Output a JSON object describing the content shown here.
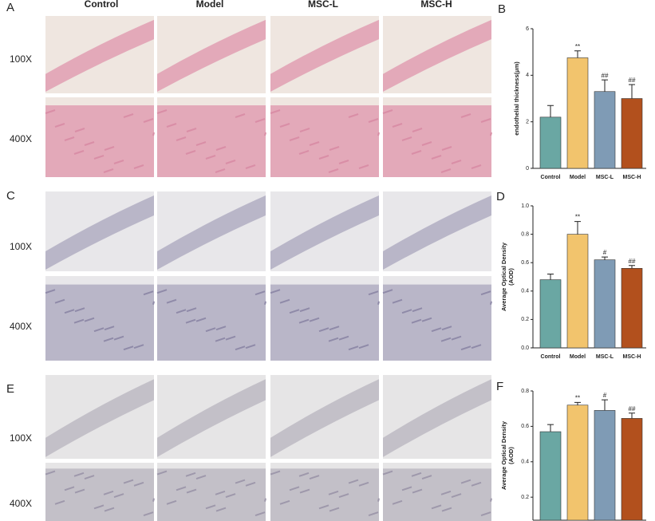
{
  "panels": [
    "A",
    "B",
    "C",
    "D",
    "E",
    "F"
  ],
  "columns": [
    "Control",
    "Model",
    "MSC-L",
    "MSC-H"
  ],
  "rows": [
    "100X",
    "400X",
    "100X",
    "400X",
    "100X",
    "400X"
  ],
  "chart_data": [
    {
      "type": "bar",
      "ylabel": "endothelial thickness(μm)",
      "categories": [
        "Control",
        "Model",
        "MSC-L",
        "MSC-H"
      ],
      "values": [
        2.2,
        4.75,
        3.3,
        3.0
      ],
      "errors": [
        0.5,
        0.3,
        0.5,
        0.6
      ],
      "annotations": [
        null,
        "**",
        "##",
        "##"
      ],
      "colors": [
        "#6aa7a3",
        "#f2c46d",
        "#7f9bb5",
        "#b2501d"
      ],
      "ylim": [
        0,
        6
      ],
      "yticks": [
        0,
        2,
        4,
        6
      ]
    },
    {
      "type": "bar",
      "ylabel": [
        "Average Optical Density",
        "(AOD)"
      ],
      "categories": [
        "Control",
        "Model",
        "MSC-L",
        "MSC-H"
      ],
      "values": [
        0.48,
        0.8,
        0.62,
        0.56
      ],
      "errors": [
        0.04,
        0.09,
        0.02,
        0.02
      ],
      "annotations": [
        null,
        "**",
        "#",
        "##"
      ],
      "colors": [
        "#6aa7a3",
        "#f2c46d",
        "#7f9bb5",
        "#b2501d"
      ],
      "ylim": [
        0,
        1
      ],
      "yticks": [
        {
          "value": 0,
          "label": "0.0"
        },
        0.2,
        0.4,
        0.6,
        0.8,
        {
          "value": 1,
          "label": "1.0"
        }
      ]
    },
    {
      "type": "bar",
      "ylabel": [
        "Average Optical Density",
        "(AOD)"
      ],
      "values": [
        0.57,
        0.72,
        0.69,
        0.645
      ],
      "errors": [
        0.04,
        0.015,
        0.06,
        0.03
      ],
      "annotations": [
        null,
        "**",
        "#",
        "##"
      ],
      "colors": [
        "#6aa7a3",
        "#f2c46d",
        "#7f9bb5",
        "#b2501d"
      ],
      "ylim": [
        0.07,
        0.8
      ],
      "yticks": [
        0.2,
        0.4,
        0.6,
        0.8
      ]
    }
  ]
}
